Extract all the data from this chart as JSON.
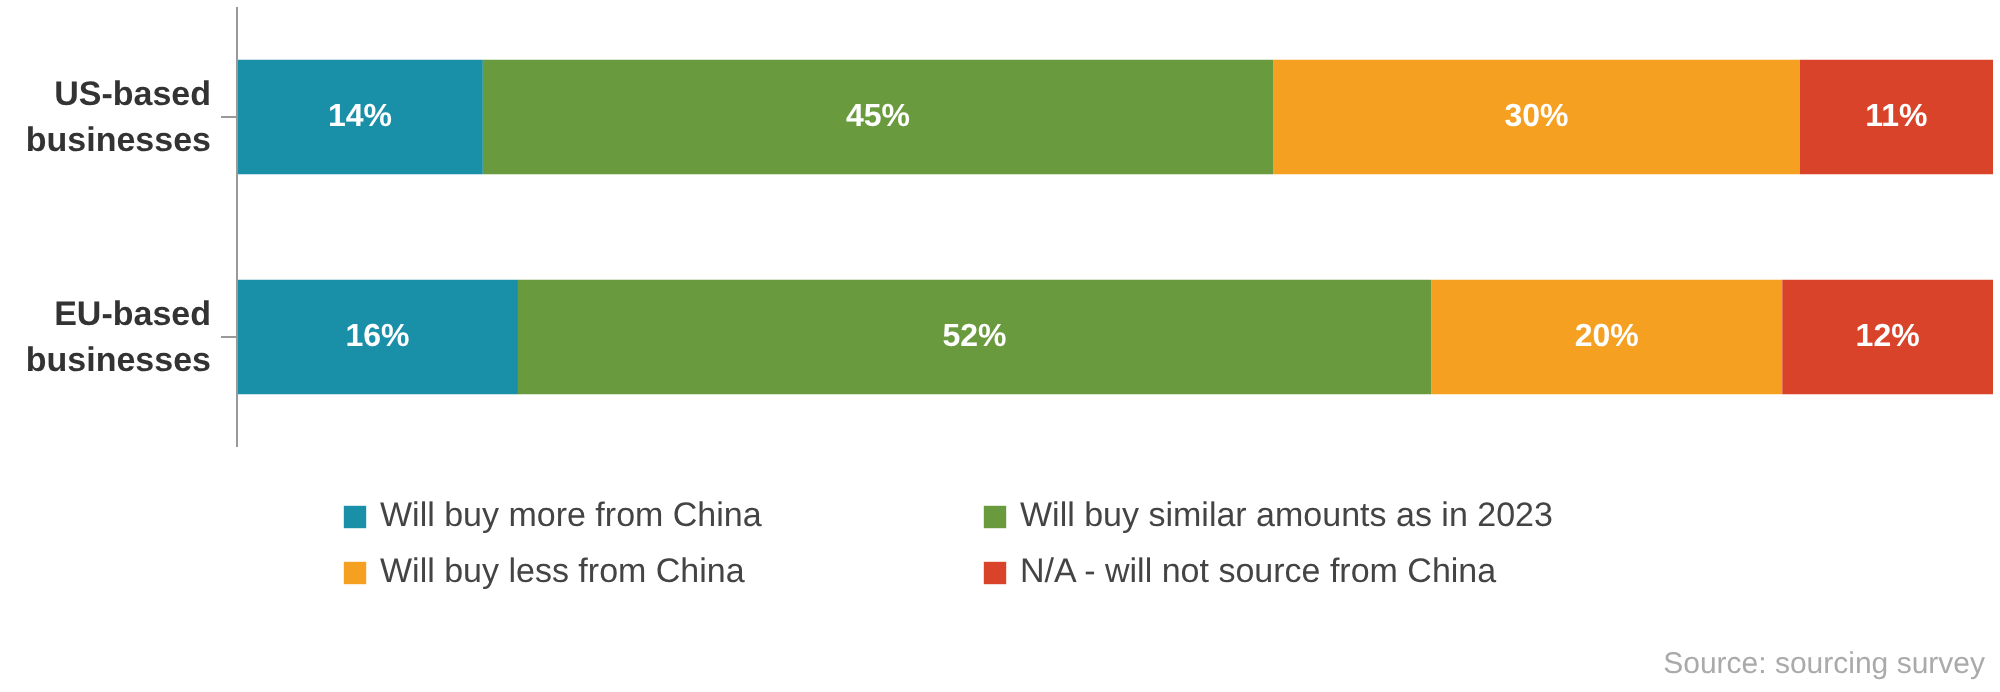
{
  "chart_data": {
    "type": "bar",
    "orientation": "horizontal",
    "stacked": true,
    "tick_labels": "y",
    "legend": "bottom",
    "categories": [
      "US-based\nbusinesses",
      "EU-based\nbusinesses"
    ],
    "series": [
      {
        "name": "Will buy more from China",
        "color": "#1a8fa8",
        "values": [
          14,
          16
        ],
        "value_labels": [
          "14%",
          "16%"
        ]
      },
      {
        "name": "Will buy similar amounts as in 2023",
        "color": "#6a9a3e",
        "values": [
          45,
          52
        ],
        "value_labels": [
          "45%",
          "52%"
        ]
      },
      {
        "name": "Will buy less from China",
        "color": "#f5a021",
        "values": [
          30,
          20
        ],
        "value_labels": [
          "30%",
          "20%"
        ]
      },
      {
        "name": "N/A - will not source from China",
        "color": "#d9432a",
        "values": [
          11,
          12
        ],
        "value_labels": [
          "11%",
          "12%"
        ]
      }
    ],
    "annotations": [
      "Source: sourcing survey"
    ]
  }
}
